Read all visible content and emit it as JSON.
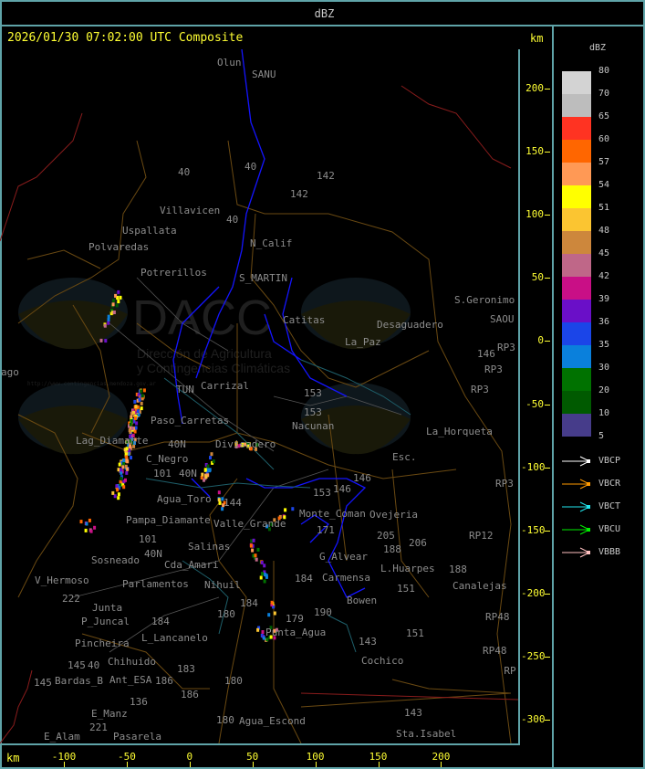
{
  "header": {
    "title": "dBZ"
  },
  "main": {
    "timestamp": "2026/01/30 07:02:00 UTC Composite",
    "unit_top": "km",
    "unit_bottom": "km"
  },
  "axes": {
    "y_ticks": [
      "200",
      "150",
      "100",
      "50",
      "0",
      "-50",
      "-100",
      "-150",
      "-200",
      "-250",
      "-300"
    ],
    "x_ticks": [
      "-100",
      "-50",
      "0",
      "50",
      "100",
      "150",
      "200"
    ]
  },
  "legend": {
    "title": "dBZ",
    "items": [
      {
        "label": "80",
        "color": "#d3d3d3"
      },
      {
        "label": "70",
        "color": "#bdbdbd"
      },
      {
        "label": "65",
        "color": "#ff3322"
      },
      {
        "label": "60",
        "color": "#ff6600"
      },
      {
        "label": "57",
        "color": "#ff9955"
      },
      {
        "label": "54",
        "color": "#ffff00"
      },
      {
        "label": "51",
        "color": "#fbc531"
      },
      {
        "label": "48",
        "color": "#cd873c"
      },
      {
        "label": "45",
        "color": "#bf6788"
      },
      {
        "label": "42",
        "color": "#c90f86"
      },
      {
        "label": "39",
        "color": "#6a0fc8"
      },
      {
        "label": "36",
        "color": "#1b45e8"
      },
      {
        "label": "35",
        "color": "#0a80dc"
      },
      {
        "label": "30",
        "color": "#007200"
      },
      {
        "label": "20",
        "color": "#005a00"
      },
      {
        "label": "10",
        "color": "#463c8a"
      },
      {
        "label": "5",
        "color": ""
      }
    ],
    "radars": [
      {
        "label": "VBCP",
        "color": "#ffffff"
      },
      {
        "label": "VBCR",
        "color": "#ff9a00"
      },
      {
        "label": "VBCT",
        "color": "#22e6ee"
      },
      {
        "label": "VBCU",
        "color": "#00ee00"
      },
      {
        "label": "VBBB",
        "color": "#ffc0c0"
      }
    ]
  },
  "watermark": {
    "logo": "DACC",
    "line1": "Dirección de Agricultura",
    "line2": "y Contingencias Climáticas",
    "url": "http://www.contingencias.mendoza.gov.ar"
  },
  "places": [
    "Olun",
    "SANU",
    "40",
    "142",
    "142",
    "Villavicen",
    "Uspallata",
    "40",
    "N_Calif",
    "Polvaredas",
    "Potrerillos",
    "S_MARTIN",
    "Carrizal",
    "Catitas",
    "La_Paz",
    "Desaguadero",
    "S.Geronimo",
    "SAOU",
    "RP3",
    "146",
    "RP3",
    "RP3",
    "153",
    "Nacunan",
    "La_Horqueta",
    "Esc.",
    "146",
    "153",
    "146",
    "RP3",
    "Lag_Diamante",
    "C_Negro",
    "Paso_Carretas",
    "Divisadero",
    "101",
    "40N",
    "Agua_Toro",
    "Pampa_Diamante",
    "101",
    "40N",
    "Salinas",
    "Cda_Amari",
    "Parlamentos",
    "Sosneado",
    "Nihuil",
    "V_Hermoso",
    "222",
    "Junta",
    "P_Juncal",
    "Pincheira",
    "L_Lancanelo",
    "Chihuido",
    "Ant_ESA",
    "Bardas_B",
    "E_Manz",
    "221",
    "E_Alam",
    "Pasarela",
    "Agua_Escond",
    "180",
    "Sta.Isabel",
    "143",
    "Cochico",
    "143",
    "151",
    "Punta_Agua",
    "179",
    "190",
    "184",
    "184",
    "180",
    "Valle_Grande",
    "144",
    "Carmensa",
    "L.Huarpes",
    "188",
    "151",
    "Canalejas",
    "188",
    "Ovejeria",
    "205",
    "206",
    "RP12",
    "RP48",
    "RP48",
    "RP",
    "Monte_Coman",
    "171",
    "G_Alvear",
    "Bowen",
    "145",
    "145",
    "183",
    "186",
    "180",
    "40",
    "136",
    "186",
    "184",
    "TUN",
    "ago",
    "40",
    "40N",
    "153"
  ]
}
